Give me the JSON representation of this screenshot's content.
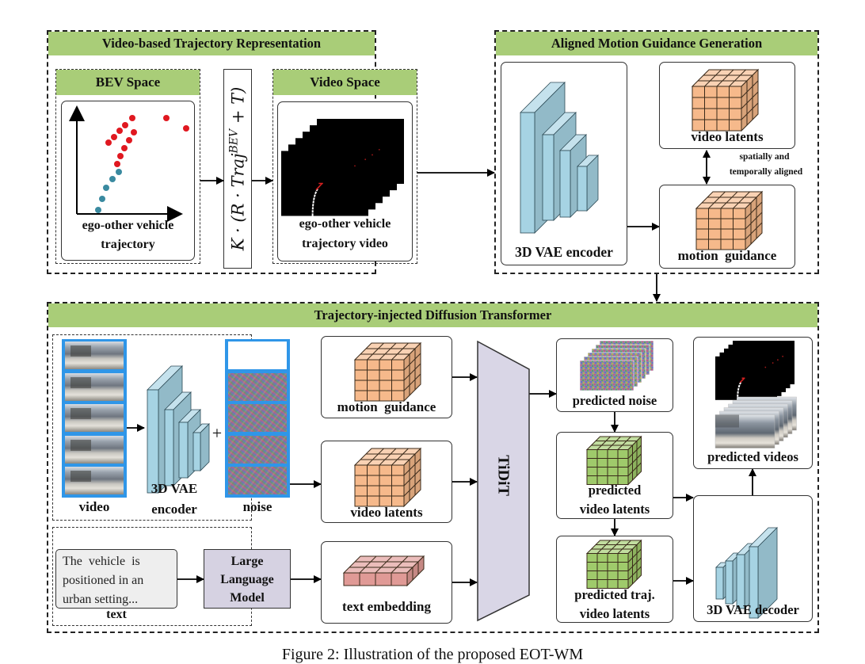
{
  "sections": {
    "video_traj": {
      "title": "Video-based Trajectory Representation"
    },
    "aligned": {
      "title": "Aligned Motion Guidance Generation"
    },
    "tidit_section": {
      "title": "Trajectory-injected Diffusion Transformer"
    }
  },
  "bev": {
    "title": "BEV Space",
    "caption_line1": "ego-other vehicle",
    "caption_line2": "trajectory"
  },
  "transform": {
    "formula_prefix": "K · (R · Traj",
    "formula_sup": "BEV",
    "formula_suffix": " + T)"
  },
  "video_space": {
    "title": "Video Space",
    "caption_line1": "ego-other vehicle",
    "caption_line2": "trajectory video"
  },
  "aligned_block": {
    "encoder_label": "3D VAE encoder",
    "video_latents_label": "video latents",
    "motion_guidance_label": "motion  guidance",
    "align_note_line1": "spatially and",
    "align_note_line2": "temporally aligned"
  },
  "tidit_block": {
    "video_label": "video",
    "encoder_line1": "3D VAE",
    "encoder_line2": "encoder",
    "plus_sign": "+",
    "noise_label": "noise",
    "text_prompt_line1": "The  vehicle  is",
    "text_prompt_line2": "positioned in an",
    "text_prompt_line3": "urban setting...",
    "text_label": "text",
    "llm_line1": "Large",
    "llm_line2": "Language",
    "llm_line3": "Model",
    "motion_guidance_label": "motion  guidance",
    "video_latents_label": "video latents",
    "text_embedding_label": "text embedding",
    "tidit_label": "TiDiT",
    "predicted_noise_label": "predicted noise",
    "pred_video_latents_line1": "predicted",
    "pred_video_latents_line2": "video latents",
    "pred_traj_line1": "predicted traj.",
    "pred_traj_line2": "video latents",
    "decoder_label": "3D VAE decoder",
    "predicted_videos_label": "predicted videos"
  },
  "caption": {
    "text": "Figure 2: Illustration of the proposed EOT-WM"
  },
  "colors": {
    "section_header": "#a9cd78",
    "encoder_blue": "#a6d3e3",
    "latent_orange": "#f6b98b",
    "latent_green": "#9fca6b",
    "embedding_red": "#e09a96",
    "tidit_purple": "#d9d6e6",
    "llm_purple": "#d6d2e2",
    "ego_dot": "#3a8aa0",
    "other_dot": "#e01820",
    "frame_border": "#2f96e8"
  }
}
